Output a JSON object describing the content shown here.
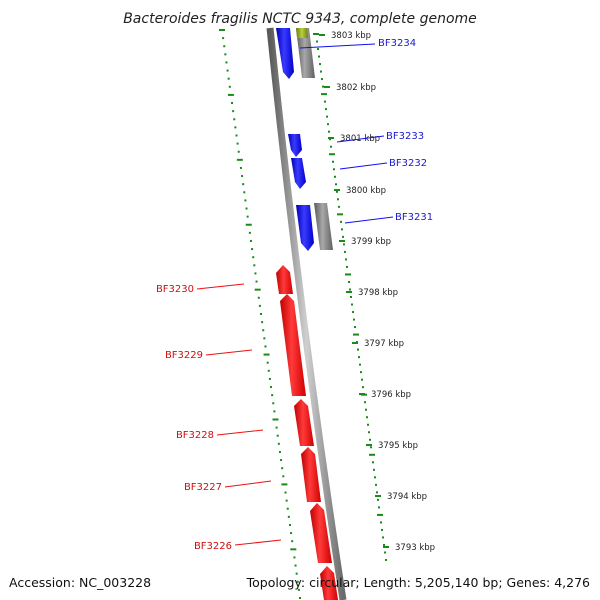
{
  "title": "Bacteroides fragilis NCTC 9343, complete genome",
  "footer": {
    "accession": "Accession: NC_003228",
    "topology": "Topology: circular; Length: 5,205,140 bp; Genes: 4,276"
  },
  "kbp_labels": [
    "3803 kbp",
    "3802 kbp",
    "3801 kbp",
    "3800 kbp",
    "3799 kbp",
    "3798 kbp",
    "3797 kbp",
    "3796 kbp",
    "3795 kbp",
    "3794 kbp",
    "3793 kbp"
  ],
  "genes": {
    "forward": [
      {
        "name": "BF3234",
        "color": "blue"
      },
      {
        "name": "BF3233",
        "color": "blue"
      },
      {
        "name": "BF3232",
        "color": "blue"
      },
      {
        "name": "BF3231",
        "color": "blue"
      }
    ],
    "reverse": [
      {
        "name": "BF3230",
        "color": "red"
      },
      {
        "name": "BF3229",
        "color": "red"
      },
      {
        "name": "BF3228",
        "color": "red"
      },
      {
        "name": "BF3227",
        "color": "red"
      },
      {
        "name": "BF3226",
        "color": "red"
      }
    ]
  },
  "colors": {
    "forward_gene": "#1010ee",
    "reverse_gene": "#ee1111",
    "feature_gray": "#7a7a7a",
    "feature_olive": "#8aa020",
    "tick_green": "#1a8a1a",
    "backbone": "#8a8a8a"
  }
}
